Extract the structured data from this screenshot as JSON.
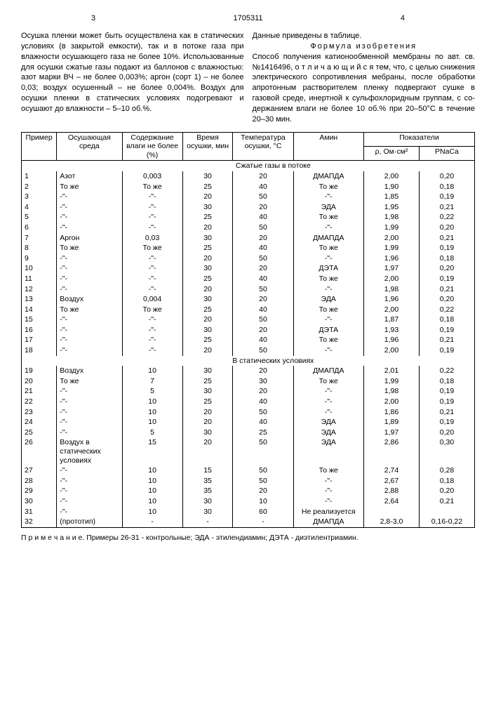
{
  "header": {
    "page_left": "3",
    "doc_number": "1705311",
    "page_right": "4"
  },
  "left_column": {
    "p1": "Осушка пленки может быть осуществле­на как в статических условиях (в закрытой емкости), так и в потоке газа при влажности осушающего газа не более 10%. Использо­ванные для осушки сжатые газы подают из баллонов с влажностью: азот марки ВЧ – не более 0,003%; аргон (сорт 1) – не более 0,03; воздух осушенный – не более 0,004%. Воз­дух для осушки пленки в статических усло­виях подогревают и осушают до влажности – 5–10 об.%."
  },
  "right_column": {
    "p1": "Данные приведены в таблице.",
    "formula_label": "Формула изобретения",
    "p2": "Способ получения катионообменной мембраны по авт. св. №1416496, о т л и ч а ю ­щ и й с я тем, что, с целью снижения элект­рического сопротивления мебраны, после обработки апротонным растворителем пленку подвергают сушке в газовой среде, инертной к сульфохлоридным группам, с со­держанием влаги не более 10 об.% при 20–50°C в течение 20–30 мин."
  },
  "table": {
    "headers": {
      "example": "Пример",
      "env": "Осушаю­щая среда",
      "moisture": "Содержа­ние влаги не более (%)",
      "time": "Время осушки, мин",
      "temp": "Темпера­тура осуш­ки, °C",
      "amine": "Амин",
      "indicators": "Показатели",
      "rho": "ρ, Ом·см²",
      "pna": "PNaCa"
    },
    "section1": "Сжатые газы в потоке",
    "section2": "В статических условиях",
    "rows": [
      {
        "n": "1",
        "env": "Азот",
        "m": "0,003",
        "t": "30",
        "temp": "20",
        "am": "ДМАПДА",
        "rho": "2,00",
        "p": "0,20"
      },
      {
        "n": "2",
        "env": "То же",
        "m": "То же",
        "t": "25",
        "temp": "40",
        "am": "То же",
        "rho": "1,90",
        "p": "0,18"
      },
      {
        "n": "3",
        "env": "-\"-",
        "m": "-\"-",
        "t": "20",
        "temp": "50",
        "am": "-\"-",
        "rho": "1,85",
        "p": "0,19"
      },
      {
        "n": "4",
        "env": "-\"-",
        "m": "-\"-",
        "t": "30",
        "temp": "20",
        "am": "ЭДА",
        "rho": "1,95",
        "p": "0,21"
      },
      {
        "n": "5",
        "env": "-\"-",
        "m": "-\"-",
        "t": "25",
        "temp": "40",
        "am": "То же",
        "rho": "1,98",
        "p": "0,22"
      },
      {
        "n": "6",
        "env": "-\"-",
        "m": "-\"-",
        "t": "20",
        "temp": "50",
        "am": "-\"-",
        "rho": "1,99",
        "p": "0,20"
      },
      {
        "n": "7",
        "env": "Аргон",
        "m": "0,03",
        "t": "30",
        "temp": "20",
        "am": "ДМАПДА",
        "rho": "2,00",
        "p": "0,21"
      },
      {
        "n": "8",
        "env": "То же",
        "m": "То же",
        "t": "25",
        "temp": "40",
        "am": "То же",
        "rho": "1,99",
        "p": "0,19"
      },
      {
        "n": "9",
        "env": "-\"-",
        "m": "-\"-",
        "t": "20",
        "temp": "50",
        "am": "-\"-",
        "rho": "1,96",
        "p": "0,18"
      },
      {
        "n": "10",
        "env": "-\"-",
        "m": "-\"-",
        "t": "30",
        "temp": "20",
        "am": "ДЭТА",
        "rho": "1,97",
        "p": "0,20"
      },
      {
        "n": "11",
        "env": "-\"-",
        "m": "-\"-",
        "t": "25",
        "temp": "40",
        "am": "То же",
        "rho": "2,00",
        "p": "0,19"
      },
      {
        "n": "12",
        "env": "-\"-",
        "m": "-\"-",
        "t": "20",
        "temp": "50",
        "am": "-\"-",
        "rho": "1,98",
        "p": "0,21"
      },
      {
        "n": "13",
        "env": "Воздух",
        "m": "0,004",
        "t": "30",
        "temp": "20",
        "am": "ЭДА",
        "rho": "1,96",
        "p": "0,20"
      },
      {
        "n": "14",
        "env": "То же",
        "m": "То же",
        "t": "25",
        "temp": "40",
        "am": "То же",
        "rho": "2,00",
        "p": "0,22"
      },
      {
        "n": "15",
        "env": "-\"-",
        "m": "-\"-",
        "t": "20",
        "temp": "50",
        "am": "-\"-",
        "rho": "1,87",
        "p": "0,18"
      },
      {
        "n": "16",
        "env": "-\"-",
        "m": "-\"-",
        "t": "30",
        "temp": "20",
        "am": "ДЭТА",
        "rho": "1,93",
        "p": "0,19"
      },
      {
        "n": "17",
        "env": "-\"-",
        "m": "-\"-",
        "t": "25",
        "temp": "40",
        "am": "То же",
        "rho": "1,96",
        "p": "0,21"
      },
      {
        "n": "18",
        "env": "-\"-",
        "m": "-\"-",
        "t": "20",
        "temp": "50",
        "am": "-\"-",
        "rho": "2,00",
        "p": "0,19"
      }
    ],
    "rows2": [
      {
        "n": "19",
        "env": "Воздух",
        "m": "10",
        "t": "30",
        "temp": "20",
        "am": "ДМАПДА",
        "rho": "2,01",
        "p": "0,22"
      },
      {
        "n": "20",
        "env": "То же",
        "m": "7",
        "t": "25",
        "temp": "30",
        "am": "То же",
        "rho": "1,99",
        "p": "0,18"
      },
      {
        "n": "21",
        "env": "-\"-",
        "m": "5",
        "t": "30",
        "temp": "20",
        "am": "-\"-",
        "rho": "1,98",
        "p": "0,19"
      },
      {
        "n": "22",
        "env": "-\"-",
        "m": "10",
        "t": "25",
        "temp": "40",
        "am": "-\"-",
        "rho": "2,00",
        "p": "0,19"
      },
      {
        "n": "23",
        "env": "-\"-",
        "m": "10",
        "t": "20",
        "temp": "50",
        "am": "-\"-",
        "rho": "1,86",
        "p": "0,21"
      },
      {
        "n": "24",
        "env": "-\"-",
        "m": "10",
        "t": "20",
        "temp": "40",
        "am": "ЭДА",
        "rho": "1,89",
        "p": "0,19"
      },
      {
        "n": "25",
        "env": "-\"-",
        "m": "5",
        "t": "30",
        "temp": "25",
        "am": "ЭДА",
        "rho": "1,97",
        "p": "0,20"
      },
      {
        "n": "26",
        "env": "Воздух в статических условиях",
        "m": "15",
        "t": "20",
        "temp": "50",
        "am": "ЭДА",
        "rho": "2,86",
        "p": "0,30"
      },
      {
        "n": "27",
        "env": "-\"-",
        "m": "10",
        "t": "15",
        "temp": "50",
        "am": "То же",
        "rho": "2,74",
        "p": "0,28"
      },
      {
        "n": "28",
        "env": "-\"-",
        "m": "10",
        "t": "35",
        "temp": "50",
        "am": "-\"-",
        "rho": "2,67",
        "p": "0,18"
      },
      {
        "n": "29",
        "env": "-\"-",
        "m": "10",
        "t": "35",
        "temp": "20",
        "am": "-\"-",
        "rho": "2,88",
        "p": "0,20"
      },
      {
        "n": "30",
        "env": "-\"-",
        "m": "10",
        "t": "30",
        "temp": "10",
        "am": "-\"-",
        "rho": "2,64",
        "p": "0,21"
      },
      {
        "n": "31",
        "env": "-\"-",
        "m": "10",
        "t": "30",
        "temp": "60",
        "am": "Не реали­зуется",
        "rho": "",
        "p": ""
      },
      {
        "n": "32",
        "env": "(прототип)",
        "m": "-",
        "t": "-",
        "temp": "-",
        "am": "ДМАПДА",
        "rho": "2,8-3,0",
        "p": "0,16-0,22"
      }
    ]
  },
  "note": "П р и м е ч а н и е. Примеры 26-31 - контрольные; ЭДА - этилендиамин; ДЭТА - диэтилен­триамин."
}
